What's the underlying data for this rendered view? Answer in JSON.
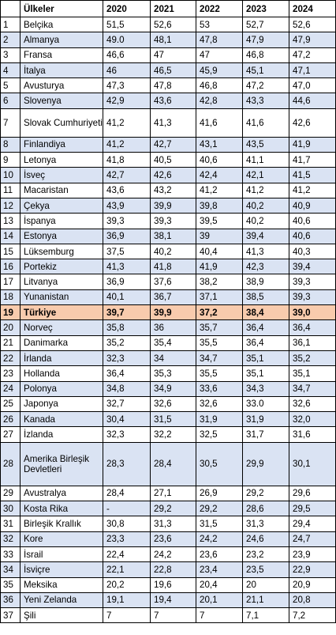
{
  "table": {
    "headers": [
      "",
      "Ülkeler",
      "2020",
      "2021",
      "2022",
      "2023",
      "2024"
    ],
    "rows": [
      [
        "1",
        "Belçika",
        "51,5",
        "52,6",
        "53",
        "52,7",
        "52,6"
      ],
      [
        "2",
        "Almanya",
        "49.0",
        "48,1",
        "47,8",
        "47,9",
        "47,9"
      ],
      [
        "3",
        "Fransa",
        "46,6",
        "47",
        "47",
        "46,8",
        "47,2"
      ],
      [
        "4",
        "İtalya",
        "46",
        "46,5",
        "45,9",
        "45,1",
        "47,1"
      ],
      [
        "5",
        "Avusturya",
        "47,3",
        "47,8",
        "46,8",
        "47,2",
        "47,0"
      ],
      [
        "6",
        "Slovenya",
        "42,9",
        "43,6",
        "42,8",
        "43,3",
        "44,6"
      ],
      [
        "7",
        "Slovak Cumhuriyeti",
        "41,2",
        "41,3",
        "41,6",
        "41,6",
        "42,6"
      ],
      [
        "8",
        "Finlandiya",
        "41,2",
        "42,7",
        "43,1",
        "43,5",
        "41,9"
      ],
      [
        "9",
        "Letonya",
        "41,8",
        "40,5",
        "40,6",
        "41,1",
        "41,7"
      ],
      [
        "10",
        "İsveç",
        "42,7",
        "42,6",
        "42,4",
        "42,1",
        "41,5"
      ],
      [
        "11",
        "Macaristan",
        "43,6",
        "43,2",
        "41,2",
        "41,2",
        "41,2"
      ],
      [
        "12",
        "Çekya",
        "43,9",
        "39,9",
        "39,8",
        "40,2",
        "40,9"
      ],
      [
        "13",
        "İspanya",
        "39,3",
        "39,3",
        "39,5",
        "40,2",
        "40,6"
      ],
      [
        "14",
        "Estonya",
        "36,9",
        "38,1",
        "39",
        "39,4",
        "40,6"
      ],
      [
        "15",
        "Lüksemburg",
        "37,5",
        "40,2",
        "40,4",
        "41,3",
        "40,3"
      ],
      [
        "16",
        "Portekiz",
        "41,3",
        "41,8",
        "41,9",
        "42,3",
        "39,4"
      ],
      [
        "17",
        "Litvanya",
        "36,9",
        "37,6",
        "38,2",
        "38,9",
        "39,3"
      ],
      [
        "18",
        "Yunanistan",
        "40,1",
        "36,7",
        "37,1",
        "38,5",
        "39,3"
      ],
      [
        "19",
        "Türkiye",
        "39,7",
        "39,9",
        "37,2",
        "38,4",
        "39,0"
      ],
      [
        "20",
        "Norveç",
        "35,8",
        "36",
        "35,7",
        "36,4",
        "36,4"
      ],
      [
        "21",
        "Danimarka",
        "35,2",
        "35,4",
        "35,5",
        "36,4",
        "36,1"
      ],
      [
        "22",
        "İrlanda",
        "32,3",
        "34",
        "34,7",
        "35,1",
        "35,2"
      ],
      [
        "23",
        "Hollanda",
        "36,4",
        "35,3",
        "35,5",
        "35,1",
        "35,1"
      ],
      [
        "24",
        "Polonya",
        "34,8",
        "34,9",
        "33,6",
        "34,3",
        "34,7"
      ],
      [
        "25",
        "Japonya",
        "32,7",
        "32,6",
        "32,6",
        "33.0",
        "32,6"
      ],
      [
        "26",
        "Kanada",
        "30,4",
        "31,5",
        "31,9",
        "31,9",
        "32,0"
      ],
      [
        "27",
        "İzlanda",
        "32,3",
        "32,2",
        "32,5",
        "31,7",
        "31,6"
      ],
      [
        "28",
        "Amerika Birleşik Devletleri",
        "28,3",
        "28,4",
        "30,5",
        "29,9",
        "30,1"
      ],
      [
        "29",
        "Avustralya",
        "28,4",
        "27,1",
        "26,9",
        "29,2",
        "29,6"
      ],
      [
        "30",
        "Kosta Rika",
        "-",
        "29,2",
        "29,2",
        "28,6",
        "29,5"
      ],
      [
        "31",
        "Birleşik Krallık",
        "30,8",
        "31,3",
        "31,5",
        "31,3",
        "29,4"
      ],
      [
        "32",
        "Kore",
        "23,3",
        "23,6",
        "24,2",
        "24,6",
        "24,7"
      ],
      [
        "33",
        "İsrail",
        "22,4",
        "24,2",
        "23,6",
        "23,2",
        "23,9"
      ],
      [
        "34",
        "İsviçre",
        "22,1",
        "22,8",
        "23,4",
        "23,5",
        "22,9"
      ],
      [
        "35",
        "Meksika",
        "20,2",
        "19,6",
        "20,4",
        "20",
        "20,9"
      ],
      [
        "36",
        "Yeni Zelanda",
        "19,1",
        "19,4",
        "20,1",
        "21,1",
        "20,8"
      ],
      [
        "37",
        "Şili",
        "7",
        "7",
        "7",
        "7,1",
        "7,2"
      ]
    ],
    "highlight_row": "19",
    "colors": {
      "alt_row": "#dae3f3",
      "highlight": "#f8cbad",
      "border": "#000000"
    }
  }
}
